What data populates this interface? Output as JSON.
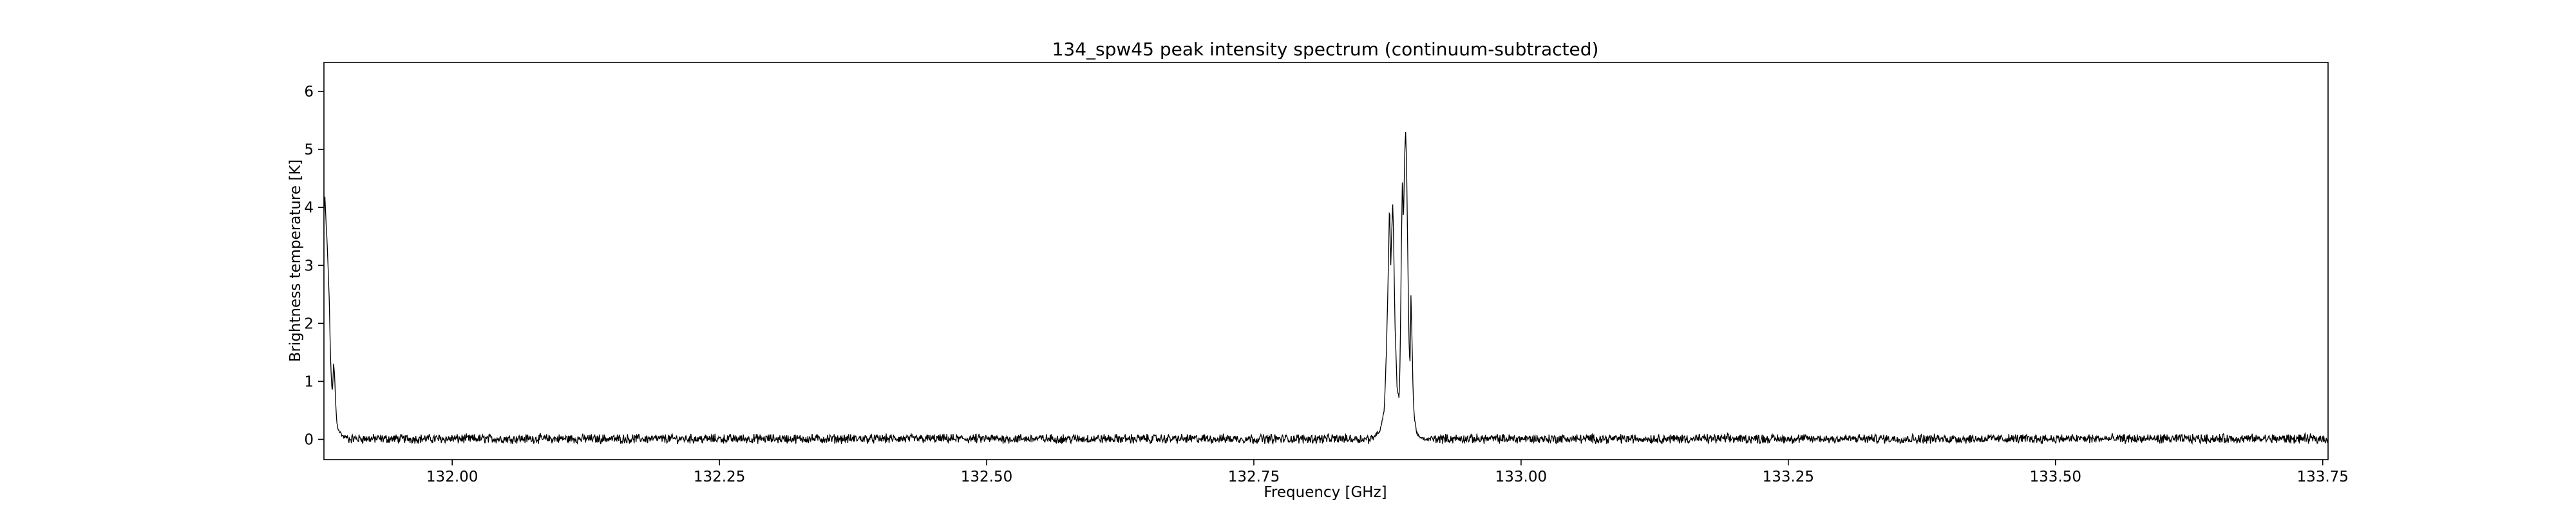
{
  "chart_data": {
    "type": "line",
    "title": "134_spw45 peak intensity spectrum (continuum-subtracted)",
    "xlabel": "Frequency [GHz]",
    "ylabel": "Brightness temperature [K]",
    "xlim": [
      131.88,
      133.755
    ],
    "ylim": [
      -0.35,
      6.5
    ],
    "x_ticks": [
      132.0,
      132.25,
      132.5,
      132.75,
      133.0,
      133.25,
      133.5,
      133.75
    ],
    "x_tick_labels": [
      "132.00",
      "132.25",
      "132.50",
      "132.75",
      "133.00",
      "133.25",
      "133.50",
      "133.75"
    ],
    "y_ticks": [
      0,
      1,
      2,
      3,
      4,
      5,
      6
    ],
    "y_tick_labels": [
      "0",
      "1",
      "2",
      "3",
      "4",
      "5",
      "6"
    ],
    "grid": false,
    "legend": "none",
    "line_color": "#000000",
    "series": [
      {
        "x": [
          131.88,
          131.881,
          131.882,
          131.883,
          131.885,
          131.886,
          131.887,
          131.888,
          131.889,
          131.89,
          131.891,
          131.892,
          131.893,
          131.895,
          131.898,
          131.902,
          132.862,
          132.868,
          132.872,
          132.874,
          132.876,
          132.877,
          132.878,
          132.879,
          132.88,
          132.881,
          132.882,
          132.884,
          132.886,
          132.887,
          132.888,
          132.889,
          132.89,
          132.891,
          132.892,
          132.893,
          132.894,
          132.895,
          132.896,
          132.897,
          132.898,
          132.899,
          132.9,
          132.902,
          132.904,
          132.906,
          132.91,
          132.915
        ],
        "y": [
          3.9,
          4.2,
          3.7,
          3.4,
          2.4,
          1.5,
          1.0,
          0.8,
          1.3,
          1.1,
          0.6,
          0.3,
          0.2,
          0.12,
          0.05,
          0.03,
          0.05,
          0.15,
          0.5,
          1.5,
          3.1,
          4.15,
          2.9,
          3.6,
          4.1,
          3.2,
          2.0,
          0.9,
          0.7,
          1.6,
          3.3,
          4.55,
          3.7,
          4.8,
          5.35,
          4.6,
          3.2,
          1.8,
          1.2,
          2.5,
          1.7,
          0.8,
          0.4,
          0.15,
          0.06,
          0.02,
          0.0,
          0.0
        ]
      }
    ]
  }
}
